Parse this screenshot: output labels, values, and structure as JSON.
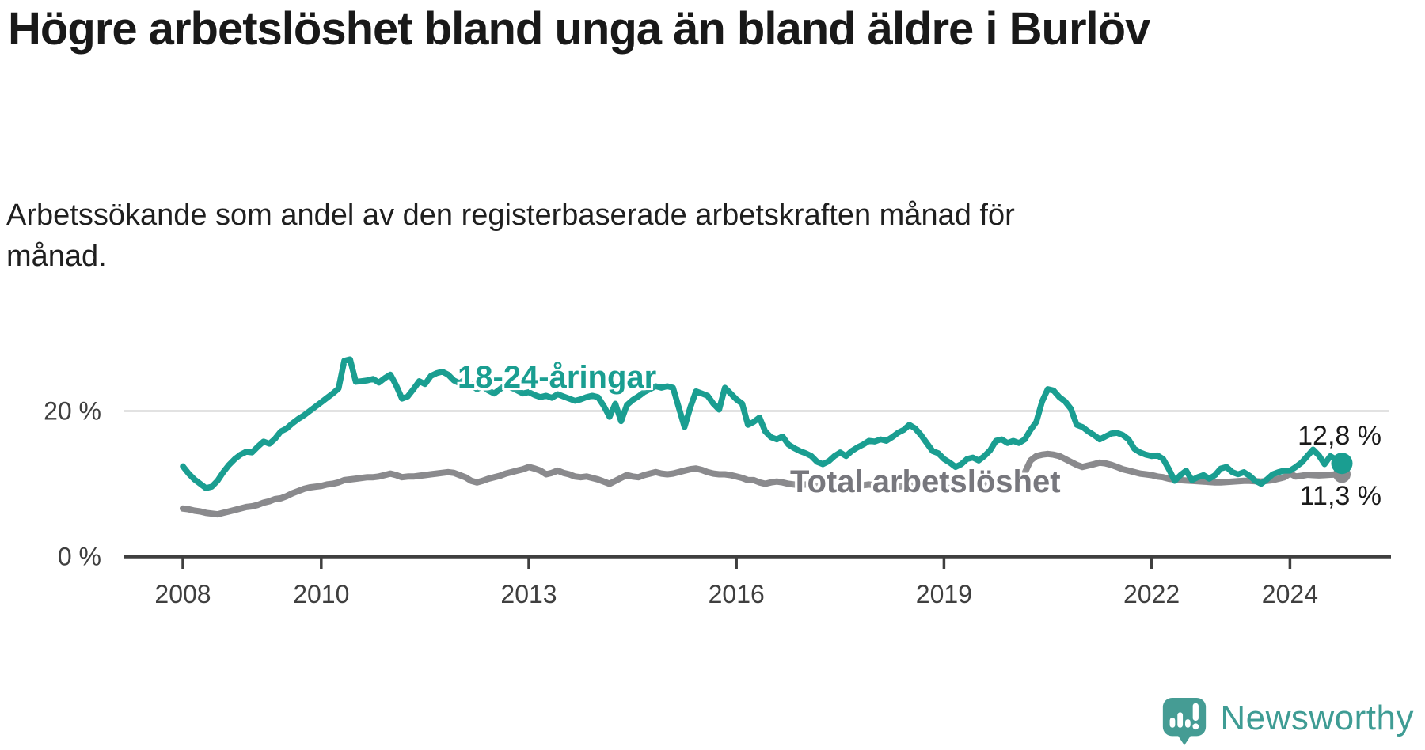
{
  "header": {
    "title": "Högre arbetslöshet bland unga än bland äldre i Burlöv",
    "subtitle": "Arbetssökande som andel av den registerbaserade arbetskraften månad för månad."
  },
  "colors": {
    "young_series": "#1A9E91",
    "total_series": "#8A8A8D",
    "total_label": "#77777D",
    "axis": "#3f3f3f",
    "gridline": "#d9d9d9",
    "text": "#1a1a1a",
    "brand_teal": "#459C94"
  },
  "chart_data": {
    "type": "line",
    "title": "Högre arbetslöshet bland unga än bland äldre i Burlöv",
    "subtitle": "Arbetssökande som andel av den registerbaserade arbetskraften månad för månad.",
    "x_start": "2008-01",
    "x_end": "2024-10",
    "x_unit": "month",
    "ylim": [
      0,
      27.5
    ],
    "grid": "y-at-20-only",
    "yticks": [
      {
        "value": 20,
        "label": "20 %",
        "gridline": true
      },
      {
        "value": 0,
        "label": "0 %",
        "gridline": false
      }
    ],
    "xticks": [
      {
        "label": "2008",
        "month_index": 0
      },
      {
        "label": "2010",
        "month_index": 24
      },
      {
        "label": "2013",
        "month_index": 60
      },
      {
        "label": "2016",
        "month_index": 96
      },
      {
        "label": "2019",
        "month_index": 132
      },
      {
        "label": "2022",
        "month_index": 168
      },
      {
        "label": "2024",
        "month_index": 192
      }
    ],
    "series": [
      {
        "name": "Total arbetslöshet",
        "color": "#8A8A8D",
        "end_label": "11,3 %",
        "end_value": 11.3,
        "values": [
          6.6,
          6.5,
          6.3,
          6.2,
          6.0,
          5.9,
          5.8,
          6.0,
          6.2,
          6.4,
          6.6,
          6.8,
          6.9,
          7.1,
          7.4,
          7.6,
          7.9,
          8.0,
          8.3,
          8.7,
          9.0,
          9.3,
          9.5,
          9.6,
          9.7,
          9.9,
          10.0,
          10.2,
          10.5,
          10.6,
          10.7,
          10.8,
          10.9,
          10.9,
          11.0,
          11.2,
          11.4,
          11.2,
          10.9,
          11.0,
          11.0,
          11.1,
          11.2,
          11.3,
          11.4,
          11.5,
          11.6,
          11.5,
          11.2,
          10.9,
          10.4,
          10.2,
          10.4,
          10.7,
          10.9,
          11.1,
          11.4,
          11.6,
          11.8,
          12.0,
          12.3,
          12.1,
          11.8,
          11.3,
          11.5,
          11.8,
          11.5,
          11.3,
          11.0,
          10.9,
          11.0,
          10.8,
          10.6,
          10.3,
          10.0,
          10.4,
          10.8,
          11.2,
          11.0,
          10.9,
          11.2,
          11.4,
          11.6,
          11.4,
          11.3,
          11.4,
          11.6,
          11.8,
          12.0,
          12.1,
          11.9,
          11.6,
          11.4,
          11.3,
          11.3,
          11.2,
          11.0,
          10.8,
          10.5,
          10.5,
          10.2,
          10.0,
          10.2,
          10.3,
          10.2,
          10.0,
          9.9,
          9.8,
          9.9,
          9.8,
          9.7,
          9.6,
          9.5,
          9.7,
          9.8,
          9.7,
          9.6,
          9.7,
          9.8,
          9.9,
          9.8,
          9.7,
          9.6,
          9.5,
          9.6,
          9.7,
          9.8,
          9.7,
          9.5,
          9.4,
          9.4,
          9.5,
          9.5,
          9.4,
          9.3,
          9.4,
          9.5,
          9.7,
          9.9,
          10.0,
          10.2,
          10.4,
          10.5,
          10.5,
          10.6,
          10.8,
          11.5,
          13.2,
          13.8,
          14.0,
          14.1,
          14.0,
          13.8,
          13.4,
          13.0,
          12.6,
          12.3,
          12.5,
          12.7,
          12.9,
          12.8,
          12.6,
          12.3,
          12.0,
          11.8,
          11.6,
          11.4,
          11.3,
          11.2,
          11.0,
          10.9,
          10.7,
          10.6,
          10.5,
          10.45,
          10.4,
          10.35,
          10.3,
          10.25,
          10.2,
          10.2,
          10.25,
          10.3,
          10.35,
          10.4,
          10.4,
          10.35,
          10.3,
          10.4,
          10.5,
          10.7,
          10.9,
          11.4,
          11.0,
          11.1,
          11.25,
          11.2,
          11.15,
          11.2,
          11.25,
          11.28,
          11.3
        ]
      },
      {
        "name": "18-24-åringar",
        "color": "#1A9E91",
        "end_label": "12,8 %",
        "end_value": 12.8,
        "values": [
          12.4,
          11.4,
          10.6,
          10.0,
          9.4,
          9.6,
          10.4,
          11.6,
          12.6,
          13.4,
          14.0,
          14.4,
          14.3,
          15.1,
          15.8,
          15.5,
          16.2,
          17.2,
          17.6,
          18.3,
          18.9,
          19.4,
          20.0,
          20.6,
          21.2,
          21.8,
          22.4,
          23.1,
          26.9,
          27.1,
          24.0,
          24.1,
          24.2,
          24.4,
          23.9,
          24.5,
          25.0,
          23.5,
          21.7,
          22.0,
          23.0,
          24.1,
          23.7,
          24.8,
          25.2,
          25.4,
          25.0,
          24.2,
          23.8,
          24.4,
          23.6,
          23.0,
          23.4,
          22.8,
          22.4,
          23.0,
          23.6,
          23.2,
          22.8,
          22.4,
          22.6,
          22.2,
          21.9,
          22.1,
          21.8,
          22.3,
          22.0,
          21.7,
          21.4,
          21.6,
          21.9,
          22.1,
          21.9,
          20.7,
          19.2,
          21.0,
          18.6,
          20.8,
          21.5,
          22.0,
          22.6,
          23.0,
          23.4,
          23.2,
          23.4,
          23.2,
          20.5,
          17.8,
          20.5,
          22.7,
          22.4,
          22.1,
          21.0,
          20.2,
          23.2,
          22.4,
          21.6,
          21.0,
          18.1,
          18.5,
          19.1,
          17.2,
          16.4,
          16.1,
          16.5,
          15.4,
          14.9,
          14.5,
          14.2,
          13.8,
          13.0,
          12.7,
          13.1,
          13.8,
          14.3,
          13.8,
          14.5,
          15.0,
          15.4,
          15.9,
          15.8,
          16.1,
          15.9,
          16.4,
          17.0,
          17.4,
          18.1,
          17.6,
          16.7,
          15.6,
          14.5,
          14.2,
          13.4,
          12.9,
          12.3,
          12.7,
          13.4,
          13.6,
          13.2,
          13.8,
          14.6,
          15.9,
          16.1,
          15.6,
          15.9,
          15.6,
          16.1,
          17.4,
          18.5,
          21.3,
          23.0,
          22.8,
          21.9,
          21.3,
          20.3,
          18.1,
          17.8,
          17.2,
          16.7,
          16.1,
          16.5,
          16.9,
          17.0,
          16.7,
          16.1,
          14.8,
          14.3,
          14.0,
          13.8,
          13.9,
          13.4,
          12.0,
          10.4,
          11.2,
          11.8,
          10.5,
          10.9,
          11.2,
          10.7,
          11.2,
          12.1,
          12.3,
          11.6,
          11.3,
          11.6,
          11.1,
          10.4,
          10.0,
          10.6,
          11.3,
          11.6,
          11.8,
          11.8,
          12.3,
          12.9,
          13.8,
          14.7,
          13.9,
          12.7,
          13.8,
          13.3,
          12.8
        ]
      }
    ]
  },
  "footer": {
    "brand": "Newsworthy"
  }
}
